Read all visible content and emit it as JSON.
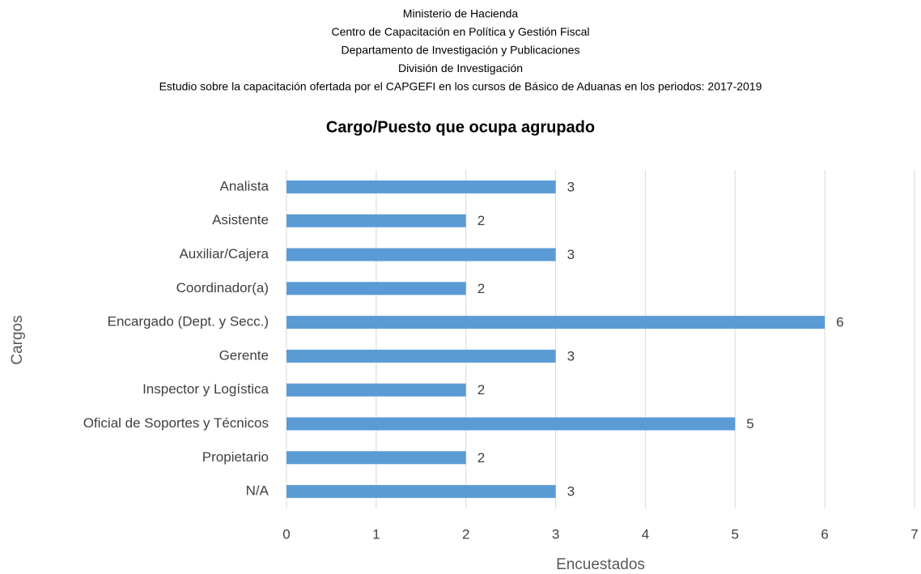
{
  "chart_data": {
    "type": "bar",
    "orientation": "horizontal",
    "header_lines": [
      "Ministerio de Hacienda",
      "Centro de Capacitación en Política y Gestión Fiscal",
      "Departamento de Investigación y Publicaciones",
      "División de Investigación",
      "Estudio sobre la capacitación ofertada por el CAPGEFI en los cursos de Básico de Aduanas en los periodos: 2017-2019"
    ],
    "title": "Cargo/Puesto que ocupa agrupado",
    "x_label": "Encuestados",
    "y_label": "Cargos",
    "categories": [
      "Analista",
      "Asistente",
      "Auxiliar/Cajera",
      "Coordinador(a)",
      "Encargado (Dept. y Secc.)",
      "Gerente",
      "Inspector y Logística",
      "Oficial de Soportes y Técnicos",
      "Propietario",
      "N/A"
    ],
    "values": [
      3,
      2,
      3,
      2,
      6,
      3,
      2,
      5,
      2,
      3
    ],
    "color": "#5b9bd5",
    "xlim": [
      0,
      7
    ],
    "xticks": [
      0,
      1,
      2,
      3,
      4,
      5,
      6,
      7
    ],
    "grid": true
  }
}
